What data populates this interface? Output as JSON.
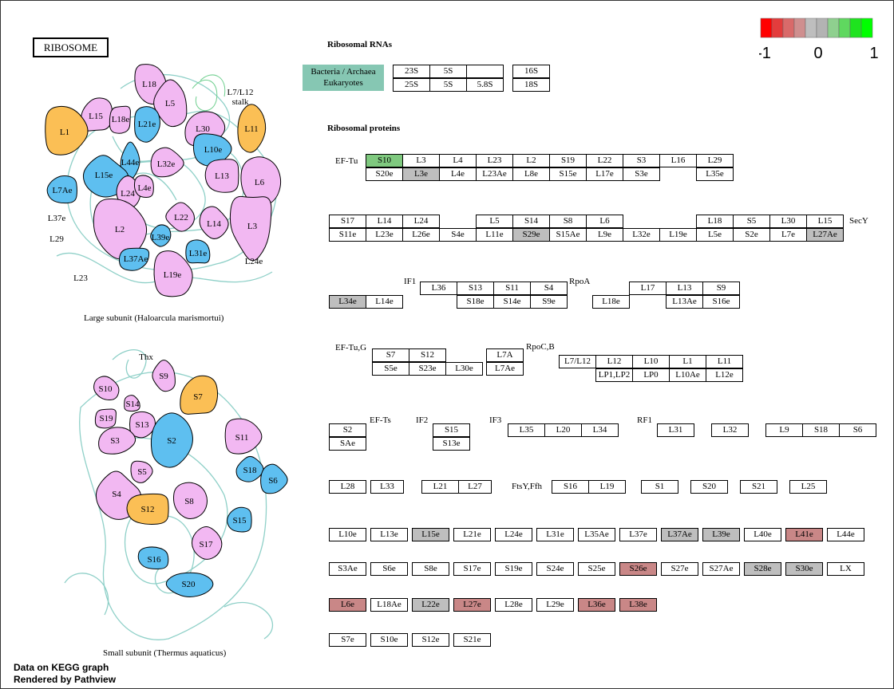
{
  "title": "RIBOSOME",
  "legend": {
    "ticks": [
      "-1",
      "0",
      "1"
    ],
    "colors": [
      "#ff0000",
      "#e33c3c",
      "#d96a6a",
      "#cf8f8f",
      "#bebebe",
      "#b3b3b3",
      "#8fd08f",
      "#5fd85f",
      "#1fe31f",
      "#00ff00"
    ]
  },
  "colors": {
    "gray": "#bebebe",
    "green": "#7fc97f",
    "red": "#c98787",
    "kegg_bar": "#86c7b3",
    "blue": "#5ebff0",
    "pink": "#f2b8f2",
    "orange": "#fbbf55"
  },
  "rna": {
    "heading": "Ribosomal RNAs",
    "kingdom_top": "Bacteria / Archaea",
    "kingdom_bottom": "Eukaryotes"
  },
  "proteins_heading": "Ribosomal proteins",
  "large_subunit_caption": "Large subunit (Haloarcula marismortui)",
  "small_subunit_caption": "Small subunit (Thermus aquaticus)",
  "large_labels": [
    "L18",
    "L5",
    "L7/L12",
    "stalk",
    "L15",
    "L18e",
    "L21e",
    "L30",
    "L11",
    "L1",
    "L44e",
    "L32e",
    "L10e",
    "L15e",
    "L13",
    "L6",
    "L7Ae",
    "L24",
    "L4e",
    "L37e",
    "L29",
    "L2",
    "L22",
    "L14",
    "L3",
    "L39e",
    "L37Ae",
    "L31e",
    "L24e",
    "L23",
    "L19e"
  ],
  "small_labels": [
    "Thx",
    "S9",
    "S10",
    "S14",
    "S7",
    "S19",
    "S13",
    "S3",
    "S2",
    "S11",
    "S18",
    "S6",
    "S5",
    "S4",
    "S12",
    "S8",
    "S15",
    "S17",
    "S16",
    "S20"
  ],
  "footer": [
    "Data on KEGG graph",
    "Rendered by Pathview"
  ],
  "labels": [
    "EF-Tu",
    "SecY",
    "IF1",
    "RpoA",
    "EF-Tu,G",
    "RpoC,B",
    "EF-Ts",
    "IF2",
    "IF3",
    "RF1",
    "FtsY,Ffh"
  ],
  "boxes": [
    {
      "t": "23S"
    },
    {
      "t": "5S"
    },
    {
      "t": ""
    },
    {
      "t": "16S"
    },
    {
      "t": "25S"
    },
    {
      "t": "5S"
    },
    {
      "t": "5.8S"
    },
    {
      "t": "18S"
    },
    {
      "t": "S10",
      "c": "green"
    },
    {
      "t": "L3"
    },
    {
      "t": "L4"
    },
    {
      "t": "L23"
    },
    {
      "t": "L2"
    },
    {
      "t": "S19"
    },
    {
      "t": "L22"
    },
    {
      "t": "S3"
    },
    {
      "t": "L16"
    },
    {
      "t": "L29"
    },
    {
      "t": "S20e"
    },
    {
      "t": "L3e",
      "c": "gray"
    },
    {
      "t": "L4e"
    },
    {
      "t": "L23Ae"
    },
    {
      "t": "L8e"
    },
    {
      "t": "S15e"
    },
    {
      "t": "L17e"
    },
    {
      "t": "S3e"
    },
    {
      "t": "L35e"
    },
    {
      "t": "S17"
    },
    {
      "t": "L14"
    },
    {
      "t": "L24"
    },
    {
      "t": "L5"
    },
    {
      "t": "S14"
    },
    {
      "t": "S8"
    },
    {
      "t": "L6"
    },
    {
      "t": "L18"
    },
    {
      "t": "S5"
    },
    {
      "t": "L30"
    },
    {
      "t": "L15"
    },
    {
      "t": "S11e"
    },
    {
      "t": "L23e"
    },
    {
      "t": "L26e"
    },
    {
      "t": "S4e"
    },
    {
      "t": "L11e"
    },
    {
      "t": "S29e",
      "c": "gray"
    },
    {
      "t": "S15Ae"
    },
    {
      "t": "L9e"
    },
    {
      "t": "L32e"
    },
    {
      "t": "L19e"
    },
    {
      "t": "L5e"
    },
    {
      "t": "S2e"
    },
    {
      "t": "L7e"
    },
    {
      "t": "L27Ae",
      "c": "gray"
    },
    {
      "t": "L36"
    },
    {
      "t": "S13"
    },
    {
      "t": "S11"
    },
    {
      "t": "S4"
    },
    {
      "t": "L17"
    },
    {
      "t": "L13"
    },
    {
      "t": "S9"
    },
    {
      "t": "L34e",
      "c": "gray"
    },
    {
      "t": "L14e"
    },
    {
      "t": "S18e"
    },
    {
      "t": "S14e"
    },
    {
      "t": "S9e"
    },
    {
      "t": "L18e"
    },
    {
      "t": "L13Ae"
    },
    {
      "t": "S16e"
    },
    {
      "t": "S7"
    },
    {
      "t": "S12"
    },
    {
      "t": "L7A"
    },
    {
      "t": "L7/L12"
    },
    {
      "t": "L12"
    },
    {
      "t": "L10"
    },
    {
      "t": "L1"
    },
    {
      "t": "L11"
    },
    {
      "t": "S5e"
    },
    {
      "t": "S23e"
    },
    {
      "t": "L30e"
    },
    {
      "t": "L7Ae"
    },
    {
      "t": "LP1,LP2"
    },
    {
      "t": "LP0"
    },
    {
      "t": "L10Ae"
    },
    {
      "t": "L12e"
    },
    {
      "t": "S2"
    },
    {
      "t": "S15"
    },
    {
      "t": "L35"
    },
    {
      "t": "L20"
    },
    {
      "t": "L34"
    },
    {
      "t": "L31"
    },
    {
      "t": "L32"
    },
    {
      "t": "L9"
    },
    {
      "t": "S18"
    },
    {
      "t": "S6"
    },
    {
      "t": "SAe"
    },
    {
      "t": "S13e"
    },
    {
      "t": "L28"
    },
    {
      "t": "L33"
    },
    {
      "t": "L21"
    },
    {
      "t": "L27"
    },
    {
      "t": "S16"
    },
    {
      "t": "L19"
    },
    {
      "t": "S1"
    },
    {
      "t": "S20"
    },
    {
      "t": "S21"
    },
    {
      "t": "L25"
    },
    {
      "t": "L10e"
    },
    {
      "t": "L13e"
    },
    {
      "t": "L15e",
      "c": "gray"
    },
    {
      "t": "L21e"
    },
    {
      "t": "L24e"
    },
    {
      "t": "L31e"
    },
    {
      "t": "L35Ae"
    },
    {
      "t": "L37e"
    },
    {
      "t": "L37Ae",
      "c": "gray"
    },
    {
      "t": "L39e",
      "c": "gray"
    },
    {
      "t": "L40e"
    },
    {
      "t": "L41e",
      "c": "red"
    },
    {
      "t": "L44e"
    },
    {
      "t": "S3Ae"
    },
    {
      "t": "S6e"
    },
    {
      "t": "S8e"
    },
    {
      "t": "S17e"
    },
    {
      "t": "S19e"
    },
    {
      "t": "S24e"
    },
    {
      "t": "S25e"
    },
    {
      "t": "S26e",
      "c": "red"
    },
    {
      "t": "S27e"
    },
    {
      "t": "S27Ae"
    },
    {
      "t": "S28e",
      "c": "gray"
    },
    {
      "t": "S30e",
      "c": "gray"
    },
    {
      "t": "LX"
    },
    {
      "t": "L6e",
      "c": "red"
    },
    {
      "t": "L18Ae"
    },
    {
      "t": "L22e",
      "c": "gray"
    },
    {
      "t": "L27e",
      "c": "red"
    },
    {
      "t": "L28e"
    },
    {
      "t": "L29e"
    },
    {
      "t": "L36e",
      "c": "red"
    },
    {
      "t": "L38e",
      "c": "red"
    },
    {
      "t": "S7e"
    },
    {
      "t": "S10e"
    },
    {
      "t": "S12e"
    },
    {
      "t": "S21e"
    }
  ]
}
